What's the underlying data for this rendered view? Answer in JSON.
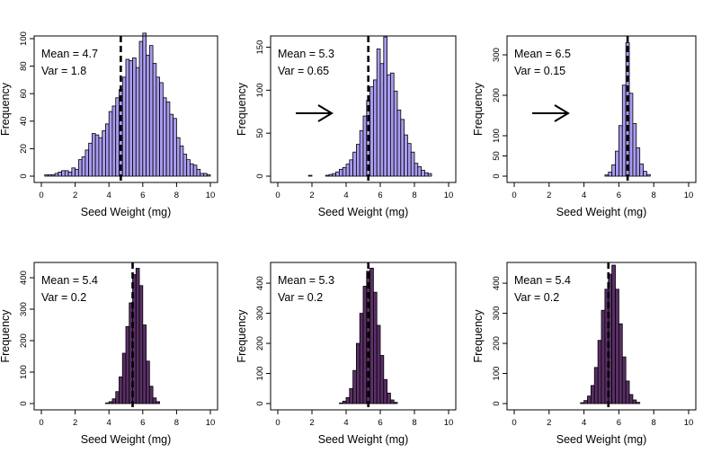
{
  "chart_data": [
    {
      "type": "bar",
      "panel": "top-left",
      "xlabel": "Seed Weight (mg)",
      "ylabel": "Frequency",
      "xlim": [
        0,
        10
      ],
      "ylim": [
        0,
        100
      ],
      "xticks": [
        0,
        2,
        4,
        6,
        8,
        10
      ],
      "yticks": [
        0,
        20,
        40,
        60,
        80,
        100
      ],
      "annotations": [
        "Mean = 4.7",
        "Var = 1.8"
      ],
      "mean_line": 4.7,
      "arrow": false,
      "bar_color": "#a99bf0",
      "bin_width": 0.2,
      "bin_start": 0.2,
      "values": [
        1,
        1,
        1,
        2,
        3,
        4,
        4,
        3,
        6,
        5,
        12,
        14,
        19,
        24,
        31,
        30,
        28,
        33,
        38,
        47,
        51,
        57,
        63,
        72,
        85,
        84,
        86,
        79,
        98,
        104,
        88,
        95,
        82,
        72,
        68,
        57,
        54,
        45,
        42,
        28,
        22,
        16,
        12,
        9,
        8,
        5,
        2,
        2,
        1
      ]
    },
    {
      "type": "bar",
      "panel": "top-middle",
      "xlabel": "Seed Weight (mg)",
      "ylabel": "Frequency",
      "xlim": [
        0,
        10
      ],
      "ylim": [
        0,
        160
      ],
      "xticks": [
        0,
        2,
        4,
        6,
        8,
        10
      ],
      "yticks": [
        0,
        50,
        100,
        150
      ],
      "annotations": [
        "Mean = 5.3",
        "Var = 0.65"
      ],
      "mean_line": 5.3,
      "arrow": true,
      "bar_color": "#a99bf0",
      "bin_width": 0.2,
      "bin_start": 1.8,
      "values": [
        1,
        0,
        0,
        0,
        0,
        1,
        2,
        3,
        5,
        8,
        10,
        14,
        19,
        28,
        37,
        53,
        70,
        88,
        104,
        112,
        148,
        131,
        162,
        118,
        120,
        99,
        77,
        66,
        48,
        38,
        28,
        15,
        11,
        7,
        4,
        3
      ]
    },
    {
      "type": "bar",
      "panel": "top-right",
      "xlabel": "Seed Weight (mg)",
      "ylabel": "Frequency",
      "xlim": [
        0,
        10
      ],
      "ylim": [
        0,
        340
      ],
      "xticks": [
        0,
        2,
        4,
        6,
        8,
        10
      ],
      "yticks": [
        0,
        50,
        100,
        200,
        300
      ],
      "annotations": [
        "Mean = 6.5",
        "Var = 0.15"
      ],
      "mean_line": 6.5,
      "arrow": true,
      "bar_color": "#a99bf0",
      "bin_width": 0.2,
      "bin_start": 5.2,
      "values": [
        3,
        10,
        28,
        62,
        125,
        225,
        330,
        205,
        130,
        70,
        30,
        12,
        4
      ]
    },
    {
      "type": "bar",
      "panel": "bottom-left",
      "xlabel": "Seed Weight (mg)",
      "ylabel": "Frequency",
      "xlim": [
        0,
        10
      ],
      "ylim": [
        0,
        440
      ],
      "xticks": [
        0,
        2,
        4,
        6,
        8,
        10
      ],
      "yticks": [
        0,
        100,
        200,
        300,
        400
      ],
      "annotations": [
        "Mean = 5.4",
        "Var = 0.2"
      ],
      "mean_line": 5.4,
      "arrow": false,
      "bar_color": "#5a2f66",
      "bin_width": 0.2,
      "bin_start": 3.8,
      "values": [
        2,
        6,
        15,
        38,
        85,
        160,
        245,
        320,
        410,
        430,
        375,
        250,
        135,
        55,
        18,
        6
      ]
    },
    {
      "type": "bar",
      "panel": "bottom-middle",
      "xlabel": "Seed Weight (mg)",
      "ylabel": "Frequency",
      "xlim": [
        0,
        10
      ],
      "ylim": [
        0,
        460
      ],
      "xticks": [
        0,
        2,
        4,
        6,
        8,
        10
      ],
      "yticks": [
        0,
        100,
        200,
        300,
        400
      ],
      "annotations": [
        "Mean = 5.3",
        "Var = 0.2"
      ],
      "mean_line": 5.3,
      "arrow": false,
      "bar_color": "#5a2f66",
      "bin_width": 0.2,
      "bin_start": 3.6,
      "values": [
        2,
        8,
        20,
        50,
        110,
        200,
        300,
        390,
        440,
        450,
        370,
        260,
        160,
        80,
        35,
        12,
        4
      ]
    },
    {
      "type": "bar",
      "panel": "bottom-right",
      "xlabel": "Seed Weight (mg)",
      "ylabel": "Frequency",
      "xlim": [
        0,
        10
      ],
      "ylim": [
        0,
        460
      ],
      "xticks": [
        0,
        2,
        4,
        6,
        8,
        10
      ],
      "yticks": [
        0,
        100,
        200,
        300,
        400
      ],
      "annotations": [
        "Mean = 5.4",
        "Var = 0.2"
      ],
      "mean_line": 5.4,
      "arrow": false,
      "bar_color": "#5a2f66",
      "bin_width": 0.2,
      "bin_start": 3.8,
      "values": [
        3,
        10,
        25,
        60,
        120,
        210,
        310,
        380,
        430,
        460,
        380,
        265,
        155,
        75,
        30,
        12,
        4
      ]
    }
  ]
}
